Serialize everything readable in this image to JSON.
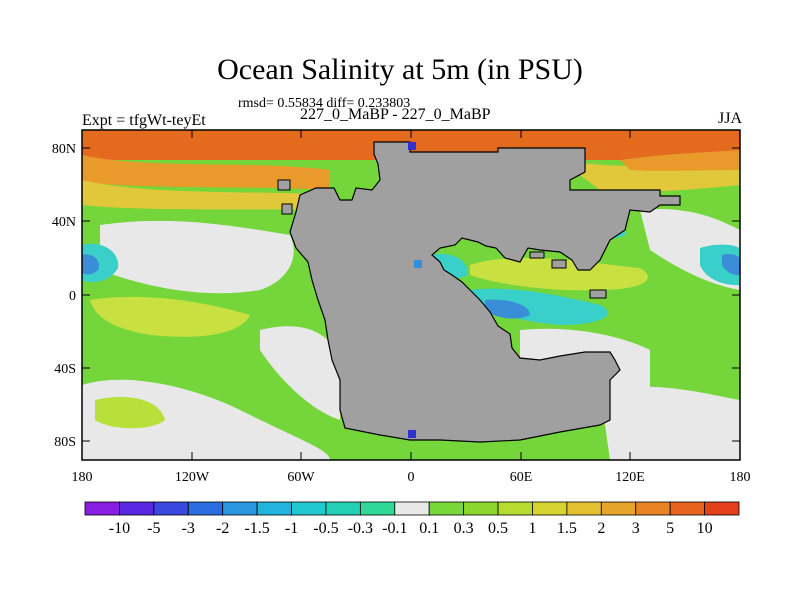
{
  "header": {
    "title": "Ocean Salinity at 5m (in PSU)",
    "stats": "rmsd= 0.55834 diff= 0.233803",
    "left_label": "Expt = tfgWt-teyEt",
    "center_label": "227_0_MaBP - 227_0_MaBP",
    "right_label": "JJA"
  },
  "map": {
    "lat_ticks": [
      "80N",
      "40N",
      "0",
      "40S",
      "80S"
    ],
    "lon_ticks": [
      "180",
      "120W",
      "60W",
      "0",
      "60E",
      "120E",
      "180"
    ],
    "colors": {
      "land": "#a0a0a0",
      "neutral": "#e8e8e8",
      "green_light": "#b8e03a",
      "green": "#74d63a",
      "yellow_green": "#c8e040",
      "yellow": "#e0c83a",
      "orange": "#e89a2a",
      "orange_red": "#e46a1e",
      "cyan": "#38d0c8",
      "blue": "#3a8ed8",
      "dark_blue": "#3030d0"
    }
  },
  "colorbar": {
    "labels": [
      "-10",
      "-5",
      "-3",
      "-2",
      "-1.5",
      "-1",
      "-0.5",
      "-0.3",
      "-0.1",
      "0.1",
      "0.3",
      "0.5",
      "1",
      "1.5",
      "2",
      "3",
      "5",
      "10"
    ],
    "colors": [
      "#8a1ee0",
      "#5a28e0",
      "#3a48e0",
      "#2c6ee0",
      "#2a96e0",
      "#22b4dc",
      "#22c8d0",
      "#22d0b4",
      "#30d898",
      "#e8e8e8",
      "#78d83a",
      "#8cd62e",
      "#b6dc30",
      "#d6d430",
      "#e2c030",
      "#e6a42a",
      "#e88424",
      "#e8641e",
      "#e4401c"
    ]
  }
}
